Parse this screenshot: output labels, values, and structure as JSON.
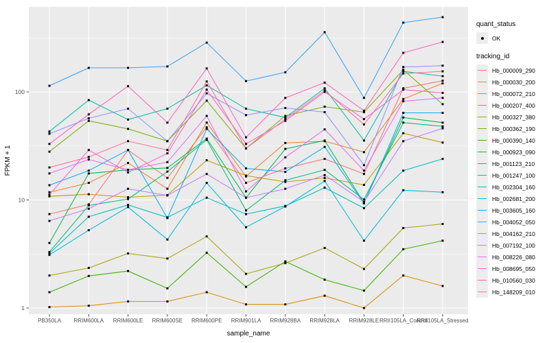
{
  "chart_data": {
    "type": "line",
    "title": "",
    "xlabel": "sample_name",
    "ylabel": "FPKM + 1",
    "y_scale": "log10",
    "ylim": [
      1,
      612
    ],
    "grid": true,
    "panel_bg": "#EBEBEB",
    "grid_color": "#FFFFFF",
    "point_color": "#000000",
    "tick_label_color": "#4D4D4D",
    "axis_title_color": "#000000",
    "y_ticks": [
      {
        "label": "1",
        "value": 1
      },
      {
        "label": "10",
        "value": 10
      },
      {
        "label": "100",
        "value": 100
      }
    ],
    "y_minor_ticks": [
      3.1623,
      31.623,
      316.23
    ],
    "categories": [
      "PB350LA",
      "RRIM600LA",
      "RRIM600LE",
      "RRIM600SE",
      "RRIM600PE",
      "RRIM901LA",
      "RRIM928BA",
      "RRIM928LA",
      "RRIM928LE",
      "RRII105LA_Control",
      "RRII105LA_Stressed"
    ],
    "legend": {
      "quant_status_title": "quant_status",
      "ok_label": "OK",
      "tracking_title": "tracking_id",
      "position": "right"
    },
    "series": [
      {
        "name": "Hb_000009_290",
        "color": "#F8766D",
        "values": [
          7.4,
          9.1,
          29,
          16,
          47,
          14.4,
          19.6,
          24,
          17.4,
          108,
          127
        ]
      },
      {
        "name": "Hb_000030_200",
        "color": "#EA8331",
        "values": [
          11.8,
          14.4,
          22,
          12.7,
          52,
          16.5,
          33.7,
          35,
          27.7,
          86,
          120
        ]
      },
      {
        "name": "Hb_000072_210",
        "color": "#D89000",
        "values": [
          1.02,
          1.05,
          1.15,
          1.15,
          1.4,
          1.08,
          1.08,
          1.3,
          1.0,
          2.0,
          1.6
        ]
      },
      {
        "name": "Hb_000207_400",
        "color": "#C09B00",
        "values": [
          10.8,
          11.3,
          10.6,
          11.1,
          23.3,
          16.8,
          14.7,
          16,
          13.8,
          41.5,
          34
        ]
      },
      {
        "name": "Hb_000327_380",
        "color": "#A3A500",
        "values": [
          2.0,
          2.35,
          3.2,
          2.87,
          4.6,
          2.07,
          2.6,
          3.6,
          2.3,
          5.5,
          6.0
        ]
      },
      {
        "name": "Hb_000362_190",
        "color": "#7CAE00",
        "values": [
          28,
          54,
          45.5,
          35,
          83,
          30,
          60,
          73,
          65,
          160,
          77
        ]
      },
      {
        "name": "Hb_000390_140",
        "color": "#39B600",
        "values": [
          1.4,
          1.98,
          2.2,
          1.52,
          3.25,
          1.57,
          2.7,
          1.83,
          1.45,
          3.5,
          4.2
        ]
      },
      {
        "name": "Hb_000923_090",
        "color": "#00BB4E",
        "values": [
          4.0,
          17.6,
          19,
          19.8,
          37,
          10.5,
          29.7,
          35.5,
          9.4,
          58,
          52
        ]
      },
      {
        "name": "Hb_001123_210",
        "color": "#00BF7D",
        "values": [
          3.3,
          8.9,
          10.2,
          18.3,
          36,
          8.0,
          15.2,
          19,
          10.1,
          52,
          48
        ]
      },
      {
        "name": "Hb_001247_100",
        "color": "#00C1A3",
        "values": [
          43,
          84,
          55.5,
          70,
          115,
          70,
          58,
          108,
          35.5,
          155,
          140
        ]
      },
      {
        "name": "Hb_002304_160",
        "color": "#00BFC4",
        "values": [
          3.2,
          7.0,
          9.0,
          6.9,
          10.5,
          7.4,
          8.8,
          13,
          8.4,
          18.7,
          24
        ]
      },
      {
        "name": "Hb_002681_200",
        "color": "#00BAE0",
        "values": [
          3.1,
          5.25,
          8.6,
          4.3,
          14.4,
          5.6,
          8.7,
          15,
          4.2,
          12.3,
          11.8
        ]
      },
      {
        "name": "Hb_003605_160",
        "color": "#00B0F6",
        "values": [
          13.7,
          18.7,
          29,
          6.8,
          45.5,
          19.6,
          18.2,
          31,
          9.3,
          64,
          64
        ]
      },
      {
        "name": "Hb_004052_050",
        "color": "#35A2FF",
        "values": [
          114,
          167,
          167,
          172,
          286,
          126,
          152,
          357,
          88,
          438,
          492
        ]
      },
      {
        "name": "Hb_004162_210",
        "color": "#9590FF",
        "values": [
          41,
          57,
          70,
          35,
          97,
          61,
          71,
          65,
          21,
          170,
          175
        ]
      },
      {
        "name": "Hb_007192_100",
        "color": "#C77CFF",
        "values": [
          6.4,
          8.3,
          12.7,
          11,
          17.4,
          10.5,
          12.7,
          17,
          9.6,
          35,
          46
        ]
      },
      {
        "name": "Hb_008226_080",
        "color": "#E76BF3",
        "values": [
          17.6,
          23.7,
          19,
          22.4,
          60,
          12,
          24.8,
          45,
          18.7,
          82,
          88
        ]
      },
      {
        "name": "Hb_008695_050",
        "color": "#FA62DB",
        "values": [
          11.2,
          29,
          18,
          27,
          105,
          33,
          54,
          100,
          56,
          105,
          98
        ]
      },
      {
        "name": "Hb_010560_030",
        "color": "#FF62BC",
        "values": [
          33,
          62,
          113,
          52,
          165,
          38,
          88,
          122,
          67,
          230,
          290
        ]
      },
      {
        "name": "Hb_148209_010",
        "color": "#FF6A98",
        "values": [
          20,
          25,
          35,
          29,
          125,
          30,
          56,
          103,
          50,
          148,
          155
        ]
      }
    ]
  }
}
